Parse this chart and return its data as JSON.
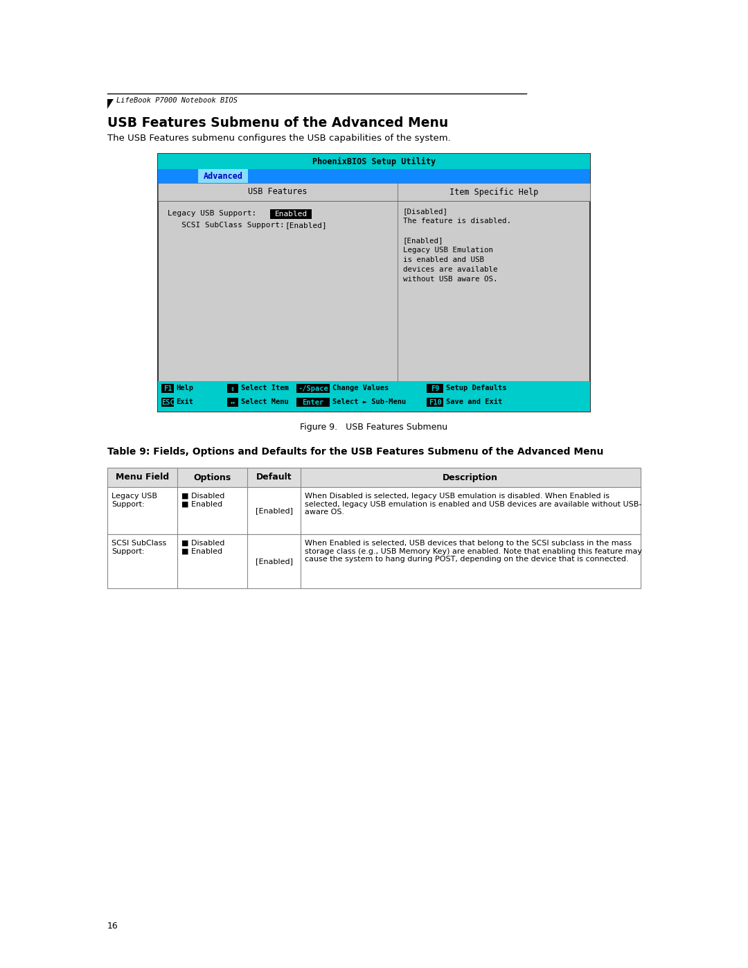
{
  "page_bg": "#ffffff",
  "header_line_text": "LifeBook P7000 Notebook BIOS",
  "section_title": "USB Features Submenu of the Advanced Menu",
  "section_desc": "The USB Features submenu configures the USB capabilities of the system.",
  "bios_title": "PhoenixBIOS Setup Utility",
  "menu_bar_active": "Advanced",
  "left_panel_title": "USB Features",
  "right_panel_title": "Item Specific Help",
  "left_row1_label": "Legacy USB Support:",
  "left_row1_value": "Enabled",
  "left_row2_label": "   SCSI SubClass Support:",
  "left_row2_value": "[Enabled]",
  "right_content": [
    "[Disabled]",
    "The feature is disabled.",
    "",
    "[Enabled]",
    "Legacy USB Emulation",
    "is enabled and USB",
    "devices are available",
    "without USB aware OS."
  ],
  "footer_row1": [
    "F1",
    "Help",
    "↕",
    "Select Item",
    "-/Space",
    "Change Values",
    "F9",
    "Setup Defaults"
  ],
  "footer_row2": [
    "ESC",
    "Exit",
    "↔",
    "Select Menu",
    "Enter",
    "Select ► Sub-Menu",
    "F10",
    "Save and Exit"
  ],
  "figure_caption": "Figure 9.   USB Features Submenu",
  "table_title": "Table 9: Fields, Options and Defaults for the USB Features Submenu of the Advanced Menu",
  "table_headers": [
    "Menu Field",
    "Options",
    "Default",
    "Description"
  ],
  "table_rows": [
    {
      "field": "Legacy USB\nSupport:",
      "options": "■ Disabled\n■ Enabled",
      "default": "[Enabled]",
      "description": "When Disabled is selected, legacy USB emulation is disabled. When Enabled is\nselected, legacy USB emulation is enabled and USB devices are available without USB-\naware OS."
    },
    {
      "field": "SCSI SubClass\nSupport:",
      "options": "■ Disabled\n■ Enabled",
      "default": "[Enabled]",
      "description": "When Enabled is selected, USB devices that belong to the SCSI subclass in the mass\nstorage class (e.g., USB Memory Key) are enabled. Note that enabling this feature may\ncause the system to hang during POST, depending on the device that is connected."
    }
  ],
  "page_number": "16",
  "mono_font": "DejaVu Sans Mono",
  "sans_font": "DejaVu Sans",
  "cyan_color": "#00cccc",
  "blue_color": "#1188ff",
  "gray_color": "#cccccc",
  "dark_gray": "#aaaaaa",
  "black": "#000000",
  "white": "#ffffff"
}
